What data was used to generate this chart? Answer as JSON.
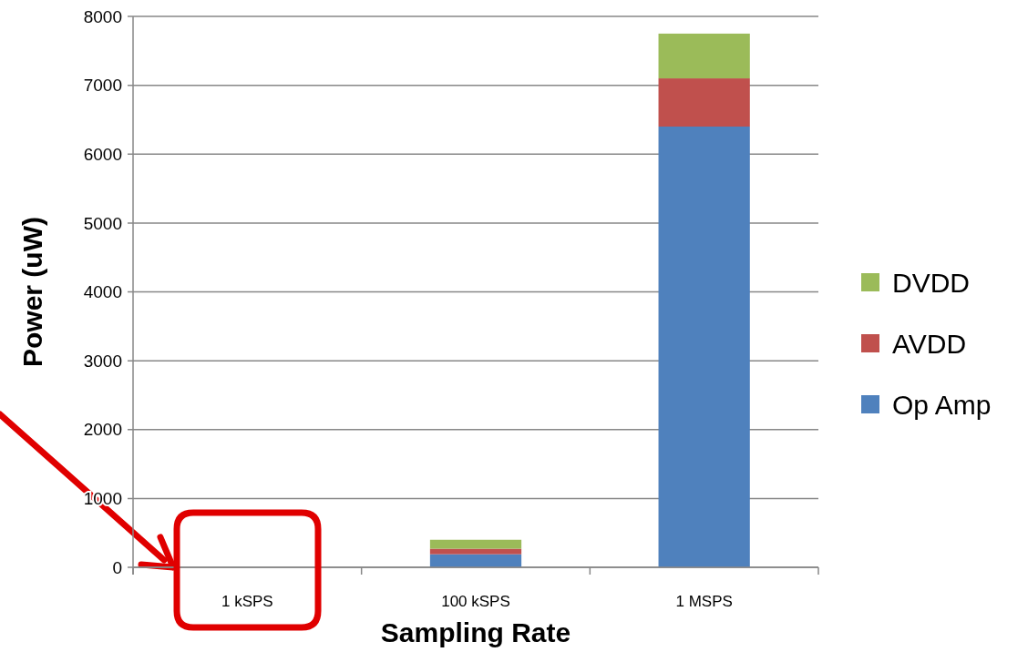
{
  "chart_data": {
    "type": "bar",
    "stacked": true,
    "xlabel": "Sampling Rate",
    "ylabel": "Power (uW)",
    "categories": [
      "1 kSPS",
      "100 kSPS",
      "1 MSPS"
    ],
    "series": [
      {
        "name": "Op Amp",
        "color": "#4f81bd",
        "values": [
          0,
          190,
          6400
        ]
      },
      {
        "name": "AVDD",
        "color": "#c0504d",
        "values": [
          0,
          80,
          700
        ]
      },
      {
        "name": "DVDD",
        "color": "#9bbb59",
        "values": [
          0,
          130,
          650
        ]
      }
    ],
    "ylim": [
      0,
      8000
    ],
    "yticks": [
      0,
      1000,
      2000,
      3000,
      4000,
      5000,
      6000,
      7000,
      8000
    ],
    "grid": "y",
    "legend": "right"
  }
}
